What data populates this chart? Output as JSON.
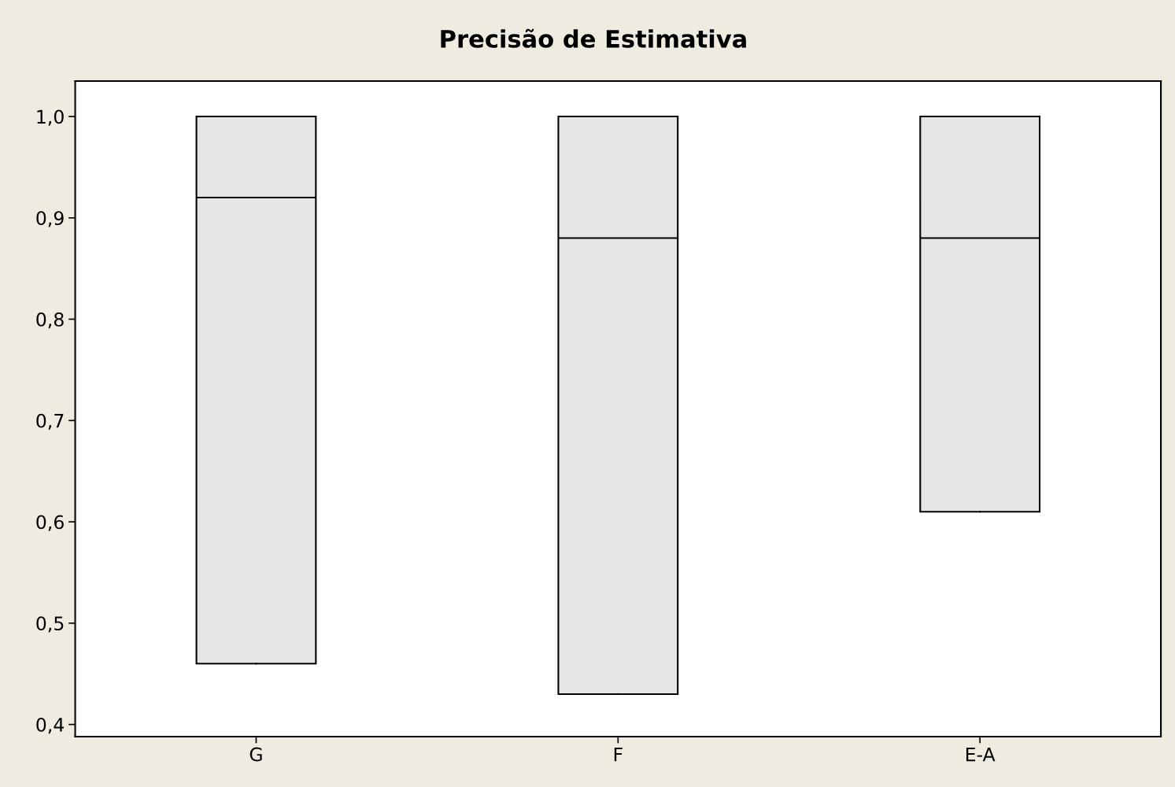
{
  "chart_data": {
    "type": "box",
    "title": "Precisão de Estimativa",
    "categories": [
      "G",
      "F",
      "E-A"
    ],
    "boxes": [
      {
        "low": 0.46,
        "q1": 0.46,
        "median": 0.92,
        "q3": 1.0,
        "high": 1.0
      },
      {
        "low": 0.43,
        "q1": 0.43,
        "median": 0.88,
        "q3": 1.0,
        "high": 1.0
      },
      {
        "low": 0.61,
        "q1": 0.61,
        "median": 0.88,
        "q3": 1.0,
        "high": 1.0
      }
    ],
    "color": "#e5e5e5",
    "ylim": [
      0.388,
      1.035
    ],
    "yticks": [
      {
        "value": 0.4,
        "label": "0,4"
      },
      {
        "value": 0.5,
        "label": "0,5"
      },
      {
        "value": 0.6,
        "label": "0,6"
      },
      {
        "value": 0.7,
        "label": "0,7"
      },
      {
        "value": 0.8,
        "label": "0,8"
      },
      {
        "value": 0.9,
        "label": "0,9"
      },
      {
        "value": 1.0,
        "label": "1,0"
      }
    ],
    "grid": false,
    "legend": false
  }
}
